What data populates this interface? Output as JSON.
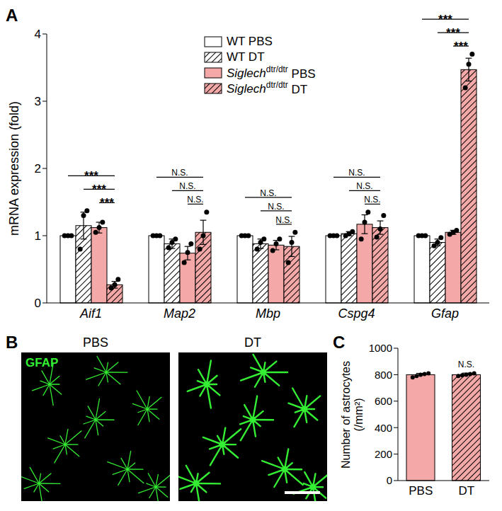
{
  "chart_data": [
    {
      "label": "A",
      "type": "bar",
      "y_label": "mRNA expression (fold)",
      "categories": [
        "Aif1",
        "Map2",
        "Mbp",
        "Cspg4",
        "Gfap"
      ],
      "ylim": [
        0,
        4
      ],
      "yticks": [
        0,
        1,
        2,
        3,
        4
      ],
      "legend": "top",
      "series": [
        {
          "name": "WT PBS",
          "color": "#ffffff",
          "values": [
            1,
            1,
            1,
            1,
            1
          ],
          "errors": [
            0,
            0,
            0,
            0,
            0
          ],
          "points": [
            [
              1,
              1,
              1
            ],
            [
              1,
              1,
              1
            ],
            [
              1,
              1,
              1
            ],
            [
              1,
              1,
              1
            ],
            [
              1,
              1,
              1
            ]
          ]
        },
        {
          "name": "WT DT",
          "color": "#ffffff",
          "values": [
            1.15,
            0.88,
            0.88,
            1.03,
            0.9
          ],
          "errors": [
            0.2,
            0.07,
            0.07,
            0.03,
            0.05
          ],
          "points": [
            [
              0.8,
              1.3,
              1.37
            ],
            [
              0.82,
              0.9,
              0.95
            ],
            [
              0.8,
              0.9,
              0.95
            ],
            [
              1.0,
              1.03,
              1.06
            ],
            [
              0.85,
              0.9,
              0.97
            ]
          ]
        },
        {
          "name": "Siglechdtr/dtr PBS",
          "color": "#f4a9a8",
          "values": [
            1.12,
            0.74,
            0.86,
            1.17,
            1.05
          ],
          "errors": [
            0.08,
            0.1,
            0.07,
            0.14,
            0.03
          ],
          "points": [
            [
              1.05,
              1.12,
              1.2
            ],
            [
              0.6,
              0.75,
              0.88
            ],
            [
              0.78,
              0.88,
              0.95
            ],
            [
              0.95,
              1.2,
              1.35
            ],
            [
              1.02,
              1.05,
              1.08
            ]
          ]
        },
        {
          "name": "Siglechdtr/dtr DT",
          "color": "#f4a9a8",
          "values": [
            0.27,
            1.05,
            0.84,
            1.12,
            3.47
          ],
          "errors": [
            0.05,
            0.18,
            0.15,
            0.1,
            0.17
          ],
          "points": [
            [
              0.22,
              0.27,
              0.35
            ],
            [
              0.8,
              1.0,
              1.35
            ],
            [
              0.6,
              0.9,
              1.05
            ],
            [
              0.98,
              1.1,
              1.3
            ],
            [
              3.2,
              3.55,
              3.7
            ]
          ]
        }
      ],
      "annotations": [
        {
          "category": "Aif1",
          "from": "WT PBS",
          "to": "Siglechdtr/dtr DT",
          "label": "***"
        },
        {
          "category": "Aif1",
          "from": "WT DT",
          "to": "Siglechdtr/dtr DT",
          "label": "***"
        },
        {
          "category": "Aif1",
          "from": "Siglechdtr/dtr PBS",
          "to": "Siglechdtr/dtr DT",
          "label": "***"
        },
        {
          "category": "Map2",
          "from": "WT PBS",
          "to": "Siglechdtr/dtr DT",
          "label": "N.S."
        },
        {
          "category": "Map2",
          "from": "WT DT",
          "to": "Siglechdtr/dtr DT",
          "label": "N.S."
        },
        {
          "category": "Map2",
          "from": "Siglechdtr/dtr PBS",
          "to": "Siglechdtr/dtr DT",
          "label": "N.S."
        },
        {
          "category": "Mbp",
          "from": "WT PBS",
          "to": "Siglechdtr/dtr DT",
          "label": "N.S."
        },
        {
          "category": "Mbp",
          "from": "WT DT",
          "to": "Siglechdtr/dtr DT",
          "label": "N.S."
        },
        {
          "category": "Mbp",
          "from": "Siglechdtr/dtr PBS",
          "to": "Siglechdtr/dtr DT",
          "label": "N.S."
        },
        {
          "category": "Cspg4",
          "from": "WT PBS",
          "to": "Siglechdtr/dtr DT",
          "label": "N.S."
        },
        {
          "category": "Cspg4",
          "from": "WT DT",
          "to": "Siglechdtr/dtr DT",
          "label": "N.S."
        },
        {
          "category": "Cspg4",
          "from": "Siglechdtr/dtr PBS",
          "to": "Siglechdtr/dtr DT",
          "label": "N.S."
        },
        {
          "category": "Gfap",
          "from": "WT PBS",
          "to": "Siglechdtr/dtr DT",
          "label": "***"
        },
        {
          "category": "Gfap",
          "from": "WT DT",
          "to": "Siglechdtr/dtr DT",
          "label": "***"
        },
        {
          "category": "Gfap",
          "from": "Siglechdtr/dtr PBS",
          "to": "Siglechdtr/dtr DT",
          "label": "***"
        }
      ]
    },
    {
      "label": "C",
      "type": "bar",
      "y_label": "Number of astrocytes (/mm²)",
      "categories": [
        "PBS",
        "DT"
      ],
      "values": [
        800,
        800
      ],
      "errors": [
        10,
        12
      ],
      "points": [
        [
          780,
          790,
          800,
          805,
          810
        ],
        [
          790,
          795,
          800,
          805,
          810
        ]
      ],
      "color": "#f4a9a8",
      "ylim": [
        0,
        1000
      ],
      "yticks": [
        0,
        200,
        400,
        600,
        800,
        1000
      ],
      "annotations": [
        {
          "category": "DT",
          "label": "N.S."
        }
      ]
    }
  ],
  "image_panels": {
    "label": "B",
    "stain": "GFAP",
    "panels": [
      "PBS",
      "DT"
    ]
  }
}
